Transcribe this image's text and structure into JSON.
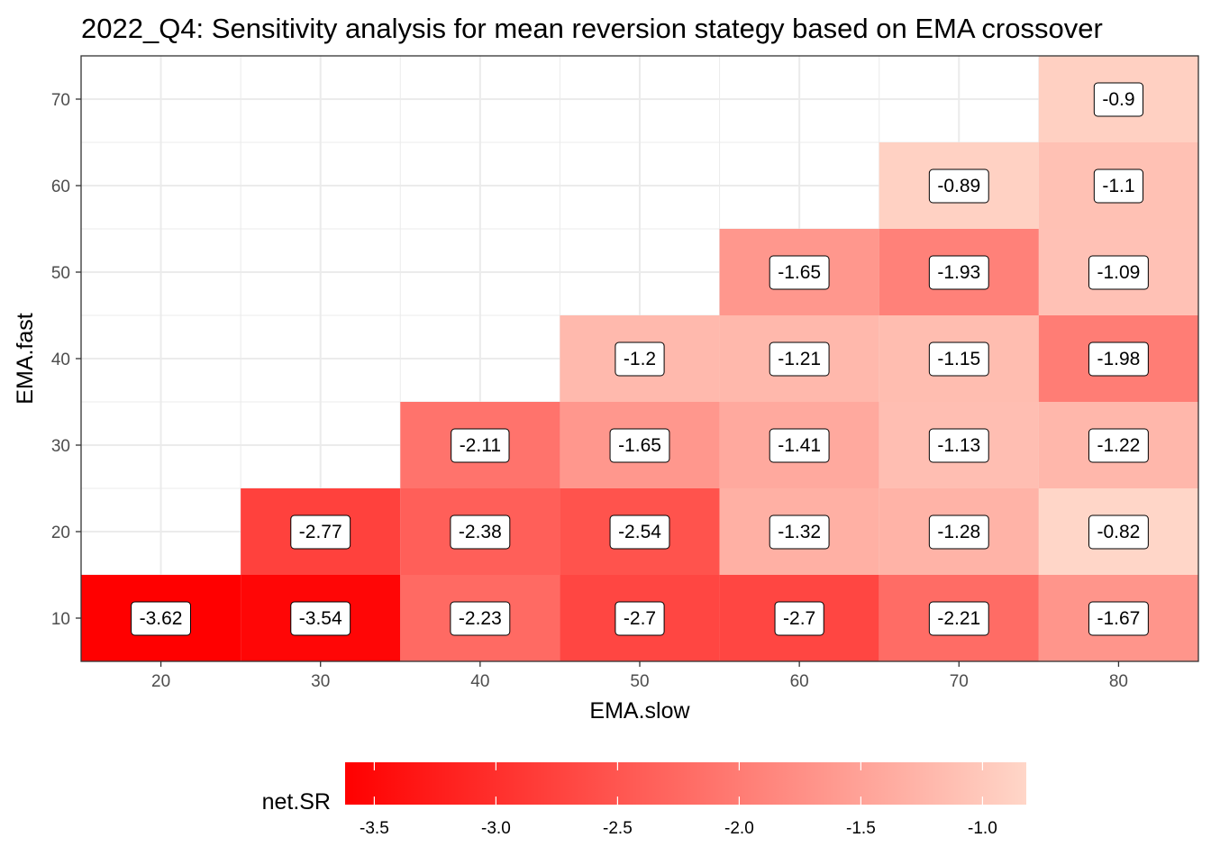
{
  "chart_data": {
    "type": "heatmap",
    "title": "2022_Q4: Sensitivity analysis for mean reversion stategy based on EMA crossover",
    "xlabel": "EMA.slow",
    "ylabel": "EMA.fast",
    "x_ticks": [
      20,
      30,
      40,
      50,
      60,
      70,
      80
    ],
    "y_ticks": [
      10,
      20,
      30,
      40,
      50,
      60,
      70
    ],
    "xlim": [
      15,
      85
    ],
    "ylim": [
      5,
      75
    ],
    "grid": true,
    "cells": [
      {
        "x": 20,
        "y": 10,
        "value": -3.62,
        "label": "-3.62"
      },
      {
        "x": 30,
        "y": 10,
        "value": -3.54,
        "label": "-3.54"
      },
      {
        "x": 40,
        "y": 10,
        "value": -2.23,
        "label": "-2.23"
      },
      {
        "x": 50,
        "y": 10,
        "value": -2.7,
        "label": "-2.7"
      },
      {
        "x": 60,
        "y": 10,
        "value": -2.7,
        "label": "-2.7"
      },
      {
        "x": 70,
        "y": 10,
        "value": -2.21,
        "label": "-2.21"
      },
      {
        "x": 80,
        "y": 10,
        "value": -1.67,
        "label": "-1.67"
      },
      {
        "x": 30,
        "y": 20,
        "value": -2.77,
        "label": "-2.77"
      },
      {
        "x": 40,
        "y": 20,
        "value": -2.38,
        "label": "-2.38"
      },
      {
        "x": 50,
        "y": 20,
        "value": -2.54,
        "label": "-2.54"
      },
      {
        "x": 60,
        "y": 20,
        "value": -1.32,
        "label": "-1.32"
      },
      {
        "x": 70,
        "y": 20,
        "value": -1.28,
        "label": "-1.28"
      },
      {
        "x": 80,
        "y": 20,
        "value": -0.82,
        "label": "-0.82"
      },
      {
        "x": 40,
        "y": 30,
        "value": -2.11,
        "label": "-2.11"
      },
      {
        "x": 50,
        "y": 30,
        "value": -1.65,
        "label": "-1.65"
      },
      {
        "x": 60,
        "y": 30,
        "value": -1.41,
        "label": "-1.41"
      },
      {
        "x": 70,
        "y": 30,
        "value": -1.13,
        "label": "-1.13"
      },
      {
        "x": 80,
        "y": 30,
        "value": -1.22,
        "label": "-1.22"
      },
      {
        "x": 50,
        "y": 40,
        "value": -1.2,
        "label": "-1.2"
      },
      {
        "x": 60,
        "y": 40,
        "value": -1.21,
        "label": "-1.21"
      },
      {
        "x": 70,
        "y": 40,
        "value": -1.15,
        "label": "-1.15"
      },
      {
        "x": 80,
        "y": 40,
        "value": -1.98,
        "label": "-1.98"
      },
      {
        "x": 60,
        "y": 50,
        "value": -1.65,
        "label": "-1.65"
      },
      {
        "x": 70,
        "y": 50,
        "value": -1.93,
        "label": "-1.93"
      },
      {
        "x": 80,
        "y": 50,
        "value": -1.09,
        "label": "-1.09"
      },
      {
        "x": 70,
        "y": 60,
        "value": -0.89,
        "label": "-0.89"
      },
      {
        "x": 80,
        "y": 60,
        "value": -1.1,
        "label": "-1.1"
      },
      {
        "x": 80,
        "y": 70,
        "value": -0.9,
        "label": "-0.9"
      }
    ],
    "legend": {
      "title": "net.SR",
      "position": "bottom",
      "min": -3.62,
      "max": -0.82,
      "ticks": [
        -3.5,
        -3.0,
        -2.5,
        -2.0,
        -1.5,
        -1.0
      ],
      "tick_labels": [
        "-3.5",
        "-3.0",
        "-2.5",
        "-2.0",
        "-1.5",
        "-1.0"
      ],
      "low_color": "#FF0000",
      "high_color": "#FFD6C8"
    },
    "colors": {
      "grid": "#EBEBEB",
      "panel_border": "#333333",
      "label_border": "#000000",
      "label_fill": "#FFFFFF"
    }
  }
}
